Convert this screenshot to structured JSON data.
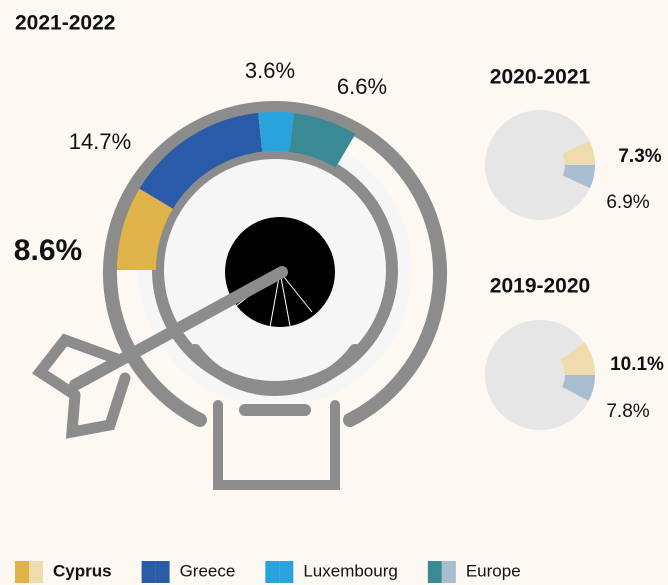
{
  "chart_data": [
    {
      "type": "donut",
      "title": "2021-2022",
      "categories": [
        "Cyprus",
        "Greece",
        "Luxembourg",
        "Europe"
      ],
      "values": [
        8.6,
        14.7,
        3.6,
        6.6
      ],
      "value_labels": [
        "8.6%",
        "14.7%",
        "3.6%",
        "6.6%"
      ],
      "colors": [
        "#e0b24a",
        "#2a5ba8",
        "#29a3dd",
        "#3a8a96"
      ]
    },
    {
      "type": "donut",
      "title": "2020-2021",
      "categories": [
        "Cyprus",
        "Europe"
      ],
      "values": [
        7.3,
        6.9
      ],
      "value_labels": [
        "7.3%",
        "6.9%"
      ],
      "colors": [
        "#efdcae",
        "#a9bdd0"
      ]
    },
    {
      "type": "donut",
      "title": "2019-2020",
      "categories": [
        "Cyprus",
        "Europe"
      ],
      "values": [
        10.1,
        7.8
      ],
      "value_labels": [
        "10.1%",
        "7.8%"
      ],
      "colors": [
        "#efdcae",
        "#a9bdd0"
      ]
    }
  ]
}
